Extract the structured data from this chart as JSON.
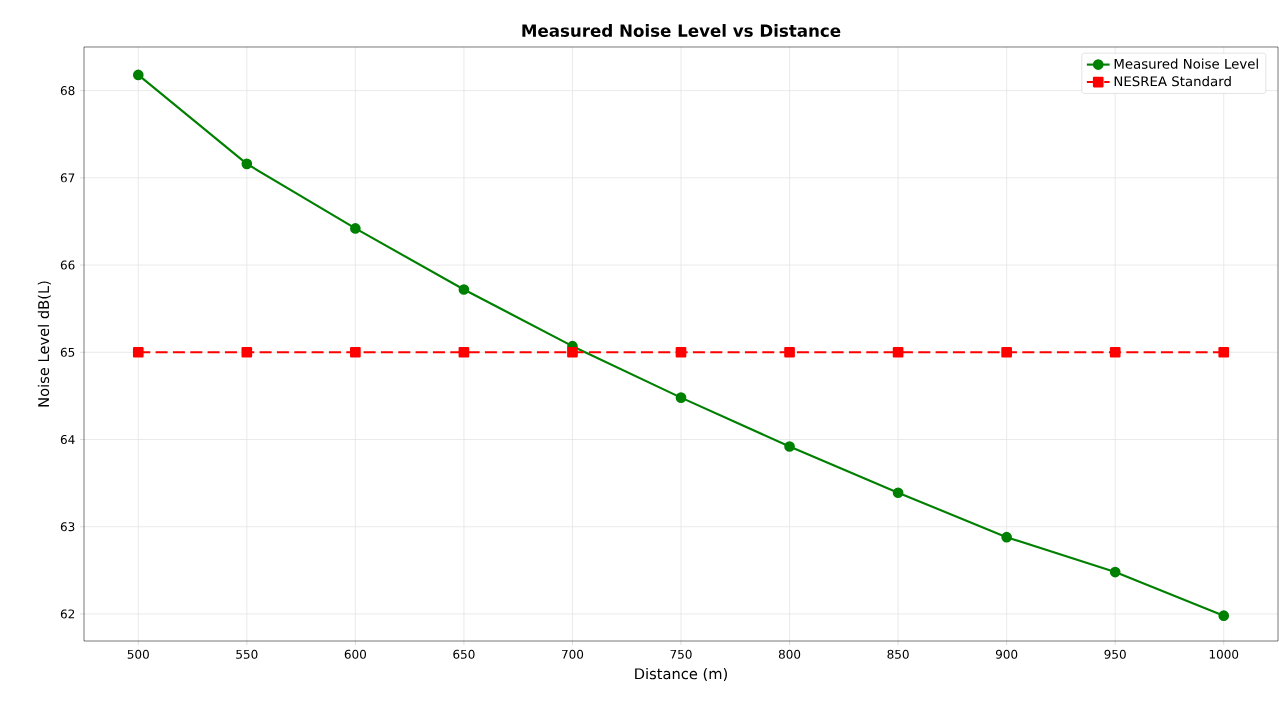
{
  "chart_data": {
    "type": "line",
    "title": "Measured Noise Level vs Distance",
    "xlabel": "Distance (m)",
    "ylabel": "Noise Level dB(L)",
    "x": [
      500,
      550,
      600,
      650,
      700,
      750,
      800,
      850,
      900,
      950,
      1000
    ],
    "series": [
      {
        "name": "Measured Noise Level",
        "color": "#008000",
        "marker": "circle",
        "line_style": "solid",
        "values": [
          68.18,
          67.16,
          66.42,
          65.72,
          65.07,
          64.48,
          63.92,
          63.39,
          62.88,
          62.48,
          61.98
        ]
      },
      {
        "name": "NESREA Standard",
        "color": "#ff0000",
        "marker": "square",
        "line_style": "dashed",
        "values": [
          65,
          65,
          65,
          65,
          65,
          65,
          65,
          65,
          65,
          65,
          65
        ]
      }
    ],
    "xlim": [
      475,
      1025
    ],
    "ylim": [
      61.69,
      68.5
    ],
    "xticks": [
      500,
      550,
      600,
      650,
      700,
      750,
      800,
      850,
      900,
      950,
      1000
    ],
    "yticks": [
      62,
      63,
      64,
      65,
      66,
      67,
      68
    ],
    "grid": true,
    "legend": "top right"
  }
}
